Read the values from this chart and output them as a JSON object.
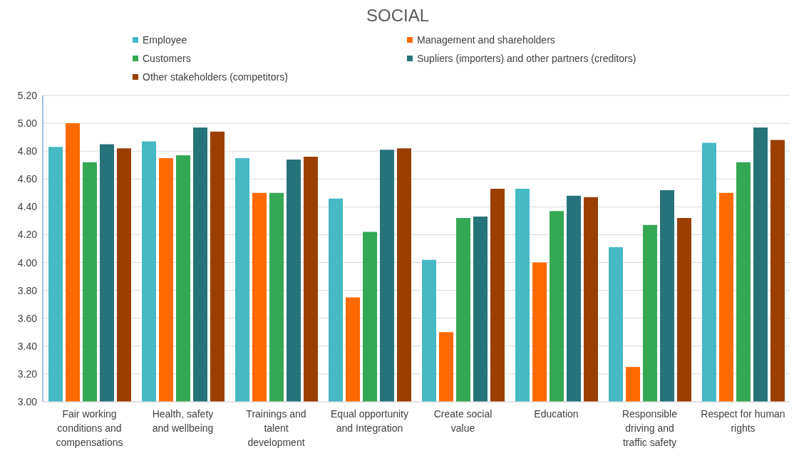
{
  "chart_data": {
    "type": "bar",
    "title": "SOCIAL",
    "categories": [
      "Fair working conditions and compensations",
      "Health, safety and wellbeing",
      "Trainings and talent development",
      "Equal opportunity and Integration",
      "Create social value",
      "Education",
      "Responsible driving and traffic safety",
      "Respect for human rights"
    ],
    "series": [
      {
        "name": "Employee",
        "color": "#45b9c4",
        "values": [
          4.83,
          4.87,
          4.75,
          4.46,
          4.02,
          4.53,
          4.11,
          4.86
        ]
      },
      {
        "name": "Management and shareholders",
        "color": "#ff6a00",
        "values": [
          5.0,
          4.75,
          4.5,
          3.75,
          3.5,
          4.0,
          3.25,
          4.5
        ]
      },
      {
        "name": "Customers",
        "color": "#35a853",
        "values": [
          4.72,
          4.77,
          4.5,
          4.22,
          4.32,
          4.37,
          4.27,
          4.72
        ]
      },
      {
        "name": "Supliers (importers) and other partners (creditors)",
        "color": "#26737a",
        "values": [
          4.85,
          4.97,
          4.74,
          4.81,
          4.33,
          4.48,
          4.52,
          4.97
        ]
      },
      {
        "name": "Other stakeholders (competitors)",
        "color": "#9a3f00",
        "values": [
          4.82,
          4.94,
          4.76,
          4.82,
          4.53,
          4.47,
          4.32,
          4.88
        ]
      }
    ],
    "ylim": [
      3.0,
      5.2
    ],
    "yticks": [
      {
        "value": 3.0,
        "label": "3.00"
      },
      {
        "value": 3.2,
        "label": "3.20"
      },
      {
        "value": 3.4,
        "label": "3.40"
      },
      {
        "value": 3.6,
        "label": "3.60"
      },
      {
        "value": 3.8,
        "label": "3.80"
      },
      {
        "value": 4.0,
        "label": "4.00"
      },
      {
        "value": 4.2,
        "label": "4.20"
      },
      {
        "value": 4.4,
        "label": "4.40"
      },
      {
        "value": 4.6,
        "label": "4.60"
      },
      {
        "value": 4.8,
        "label": "4.80"
      },
      {
        "value": 5.0,
        "label": "5.00"
      },
      {
        "value": 5.2,
        "label": "5.20"
      }
    ],
    "grid": "y",
    "legend": "top"
  }
}
